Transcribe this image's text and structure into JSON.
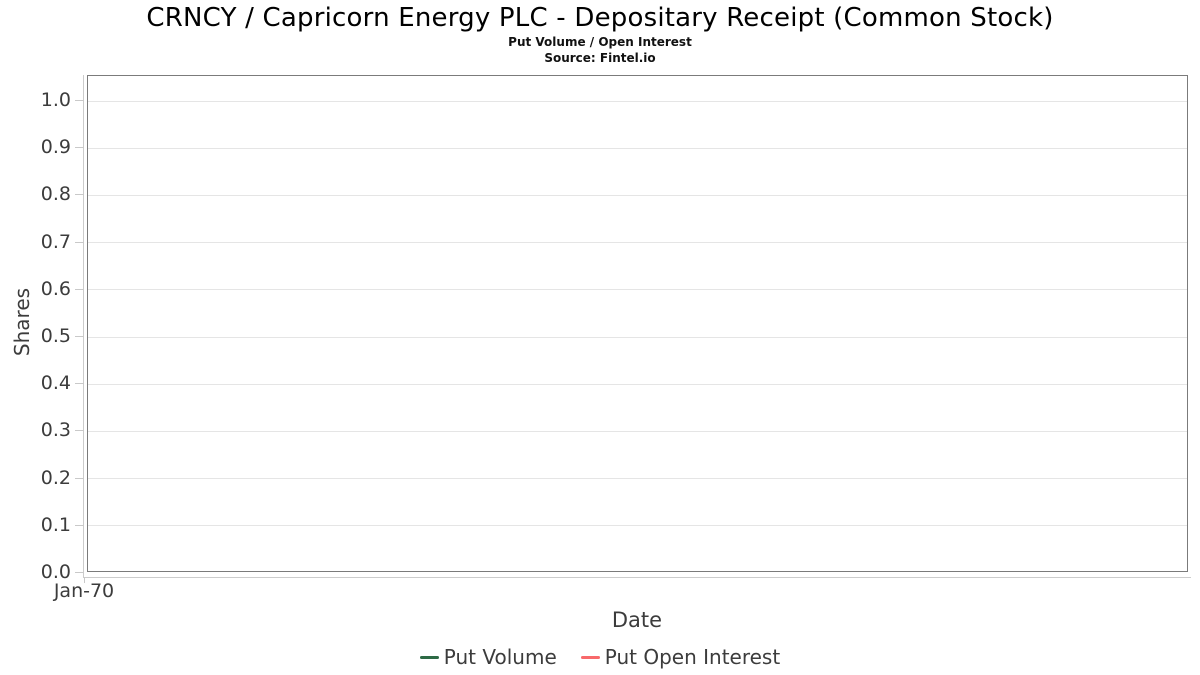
{
  "header": {
    "title": "CRNCY / Capricorn Energy PLC - Depositary Receipt (Common Stock)",
    "subtitle": "Put Volume / Open Interest",
    "source": "Source: Fintel.io"
  },
  "chart_data": {
    "type": "line",
    "title": "CRNCY / Capricorn Energy PLC - Depositary Receipt (Common Stock)",
    "subtitle": "Put Volume / Open Interest",
    "source": "Source: Fintel.io",
    "xlabel": "Date",
    "ylabel": "Shares",
    "ylim": [
      0,
      1.053
    ],
    "y_tick_labels": [
      "1.0",
      "0.9",
      "0.8",
      "0.7",
      "0.6",
      "0.5",
      "0.4",
      "0.3",
      "0.2",
      "0.1",
      "0.0"
    ],
    "x_tick_labels": [
      "Jan-70"
    ],
    "grid": true,
    "legend_position": "bottom-center",
    "series": [
      {
        "name": "Put Volume",
        "color": "#2d6a45",
        "x": [],
        "values": []
      },
      {
        "name": "Put Open Interest",
        "color": "#f8696b",
        "x": [],
        "values": []
      }
    ]
  },
  "colors": {
    "grid_line": "#e5e5e5",
    "plot_border": "#7b7b7b",
    "axis_line": "#cccccc",
    "tick_label": "#3c3c3c",
    "title_text": "#000000"
  }
}
